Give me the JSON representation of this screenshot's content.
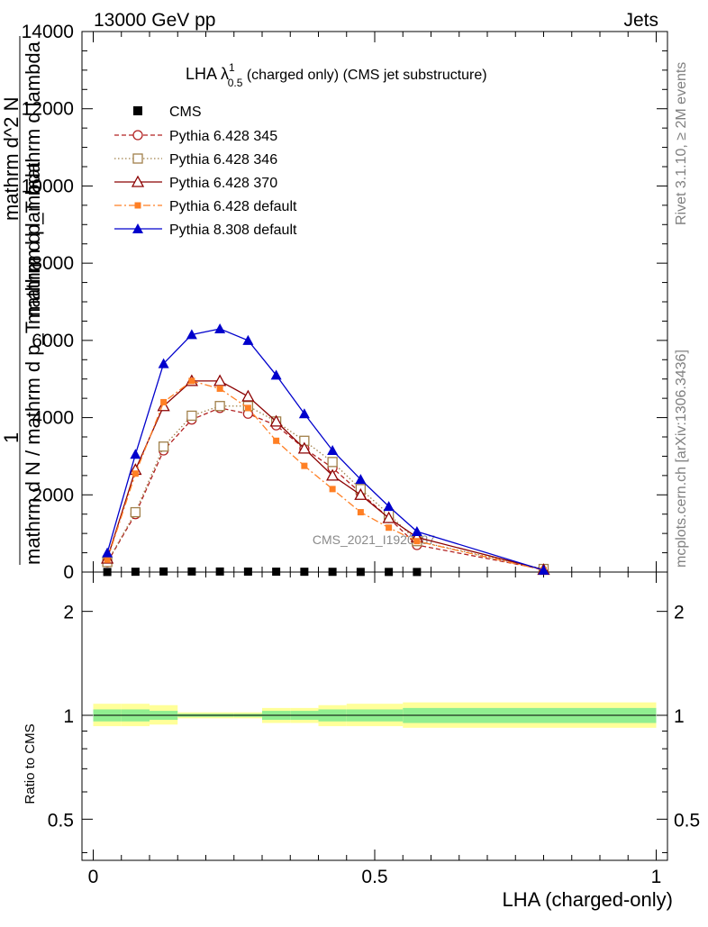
{
  "header": {
    "left": "13000 GeV pp",
    "right": "Jets"
  },
  "side_labels": {
    "rivet": "Rivet 3.1.10, ≥ 2M events",
    "mcplots": "mcplots.cern.ch [arXiv:1306.3436]"
  },
  "watermark": "CMS_2021_I1920187",
  "plot_title": {
    "main": "LHA λ",
    "sup": "1",
    "sub": "0.5",
    "rest": " (charged only) (CMS jet substructure)"
  },
  "ylabel": "mathrm d N / mathrm d p_T mathrm d lambda",
  "ylabel_lines": {
    "frac_one": "1",
    "numerator_lower": "mathrm d N / mathrm d p_T mathrm d lambda",
    "numerator_upper": "mathrm d^2 N",
    "overlap": "mathrm d p_T mathrm d lambda"
  },
  "xlabel": "LHA (charged-only)",
  "ratio_ylabel": "Ratio to CMS",
  "colors": {
    "cms": "#000000",
    "p345": "#b22222",
    "p346": "#a0804a",
    "p370": "#8b0000",
    "pdef": "#ff7f24",
    "p8": "#0000cc",
    "band_inner": "#90ee90",
    "band_outer": "#ffff99",
    "side": "#808080"
  },
  "chart_data": {
    "type": "line",
    "x": [
      0.025,
      0.075,
      0.125,
      0.175,
      0.225,
      0.275,
      0.325,
      0.375,
      0.425,
      0.475,
      0.525,
      0.575,
      0.8
    ],
    "xlim": [
      -0.02,
      1.02
    ],
    "ylim": [
      0,
      14000
    ],
    "yticks": [
      0,
      2000,
      4000,
      6000,
      8000,
      10000,
      12000,
      14000
    ],
    "xticks": [
      0,
      0.5,
      1
    ],
    "legend_placement": "top-left",
    "series": [
      {
        "name": "CMS",
        "values": [
          2,
          8,
          15,
          15,
          14,
          12,
          10,
          8,
          6,
          4,
          3,
          2,
          0
        ]
      },
      {
        "name": "Pythia 6.428 345",
        "values": [
          250,
          1500,
          3150,
          3950,
          4250,
          4100,
          3800,
          3200,
          2700,
          2050,
          1400,
          700,
          70
        ]
      },
      {
        "name": "Pythia 6.428 346",
        "values": [
          260,
          1550,
          3250,
          4050,
          4300,
          4300,
          3900,
          3400,
          2850,
          2150,
          1500,
          800,
          80
        ]
      },
      {
        "name": "Pythia 6.428 370",
        "values": [
          350,
          2650,
          4300,
          4950,
          4950,
          4550,
          3900,
          3200,
          2500,
          2000,
          1400,
          900,
          60
        ]
      },
      {
        "name": "Pythia 6.428 default",
        "values": [
          320,
          2550,
          4400,
          4950,
          4750,
          4250,
          3400,
          2750,
          2150,
          1550,
          1150,
          800,
          50
        ]
      },
      {
        "name": "Pythia 8.308 default",
        "values": [
          500,
          3050,
          5400,
          6150,
          6300,
          6000,
          5100,
          4100,
          3150,
          2400,
          1700,
          1050,
          50
        ]
      }
    ],
    "ratio": {
      "ylabel": "Ratio to CMS",
      "yticks": [
        0.5,
        1,
        2
      ],
      "ylim": [
        0.38,
        2.6
      ],
      "edges": [
        0.0,
        0.05,
        0.1,
        0.15,
        0.2,
        0.25,
        0.3,
        0.35,
        0.4,
        0.45,
        0.5,
        0.55,
        0.6,
        1.0
      ],
      "inner_lo": [
        0.96,
        0.96,
        0.97,
        0.99,
        0.99,
        0.99,
        0.97,
        0.97,
        0.96,
        0.96,
        0.96,
        0.95,
        0.95
      ],
      "inner_hi": [
        1.04,
        1.04,
        1.03,
        1.01,
        1.01,
        1.01,
        1.03,
        1.03,
        1.04,
        1.04,
        1.04,
        1.05,
        1.05
      ],
      "outer_lo": [
        0.93,
        0.93,
        0.94,
        0.98,
        0.98,
        0.98,
        0.95,
        0.95,
        0.93,
        0.93,
        0.93,
        0.92,
        0.92
      ],
      "outer_hi": [
        1.08,
        1.08,
        1.07,
        1.02,
        1.02,
        1.02,
        1.05,
        1.05,
        1.07,
        1.08,
        1.08,
        1.09,
        1.09
      ]
    }
  }
}
